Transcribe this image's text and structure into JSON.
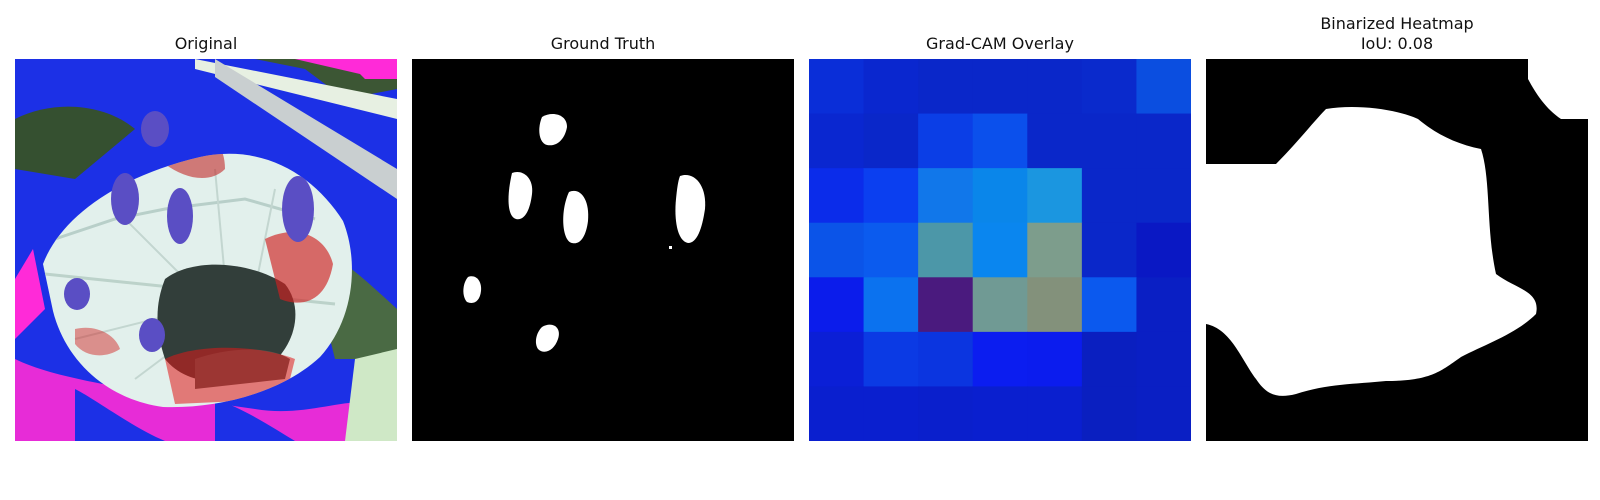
{
  "panels": [
    {
      "id": "original",
      "title": "Original"
    },
    {
      "id": "ground_truth",
      "title": "Ground Truth"
    },
    {
      "id": "gradcam_overlay",
      "title": "Grad-CAM Overlay"
    },
    {
      "id": "binarized",
      "title": "Binarized Heatmap",
      "subtitle": "IoU: 0.08"
    }
  ],
  "gradcam_grid": {
    "rows": 7,
    "cols": 7,
    "colors": [
      [
        "#0a2ed8",
        "#0a27cf",
        "#0a27c9",
        "#0a27c9",
        "#0a27c9",
        "#0a2acc",
        "#0b4ee0"
      ],
      [
        "#0a27d0",
        "#0a27c9",
        "#0b3ee6",
        "#0b50ec",
        "#0a27c9",
        "#0a27c9",
        "#0a27c9"
      ],
      [
        "#0b2cea",
        "#0b3ff0",
        "#1177ea",
        "#0a86ea",
        "#1b96e0",
        "#0a27c9",
        "#0a27c9"
      ],
      [
        "#0b54e8",
        "#0b5bee",
        "#4c97a8",
        "#0a86ef",
        "#7d9d8c",
        "#0a27c9",
        "#0a18c4"
      ],
      [
        "#0b1ceb",
        "#0b72ef",
        "#4a1a7e",
        "#709a94",
        "#83917b",
        "#0b59ee",
        "#0a1fc4"
      ],
      [
        "#0b1fd6",
        "#0b3ae4",
        "#0b35e0",
        "#0b1df0",
        "#0b1cee",
        "#0a1fc0",
        "#0a1fc4"
      ],
      [
        "#0a1fcf",
        "#0a1fcf",
        "#0a1fcc",
        "#0a1fcf",
        "#0a1fcf",
        "#0a1fc0",
        "#0a1fc4"
      ]
    ]
  }
}
